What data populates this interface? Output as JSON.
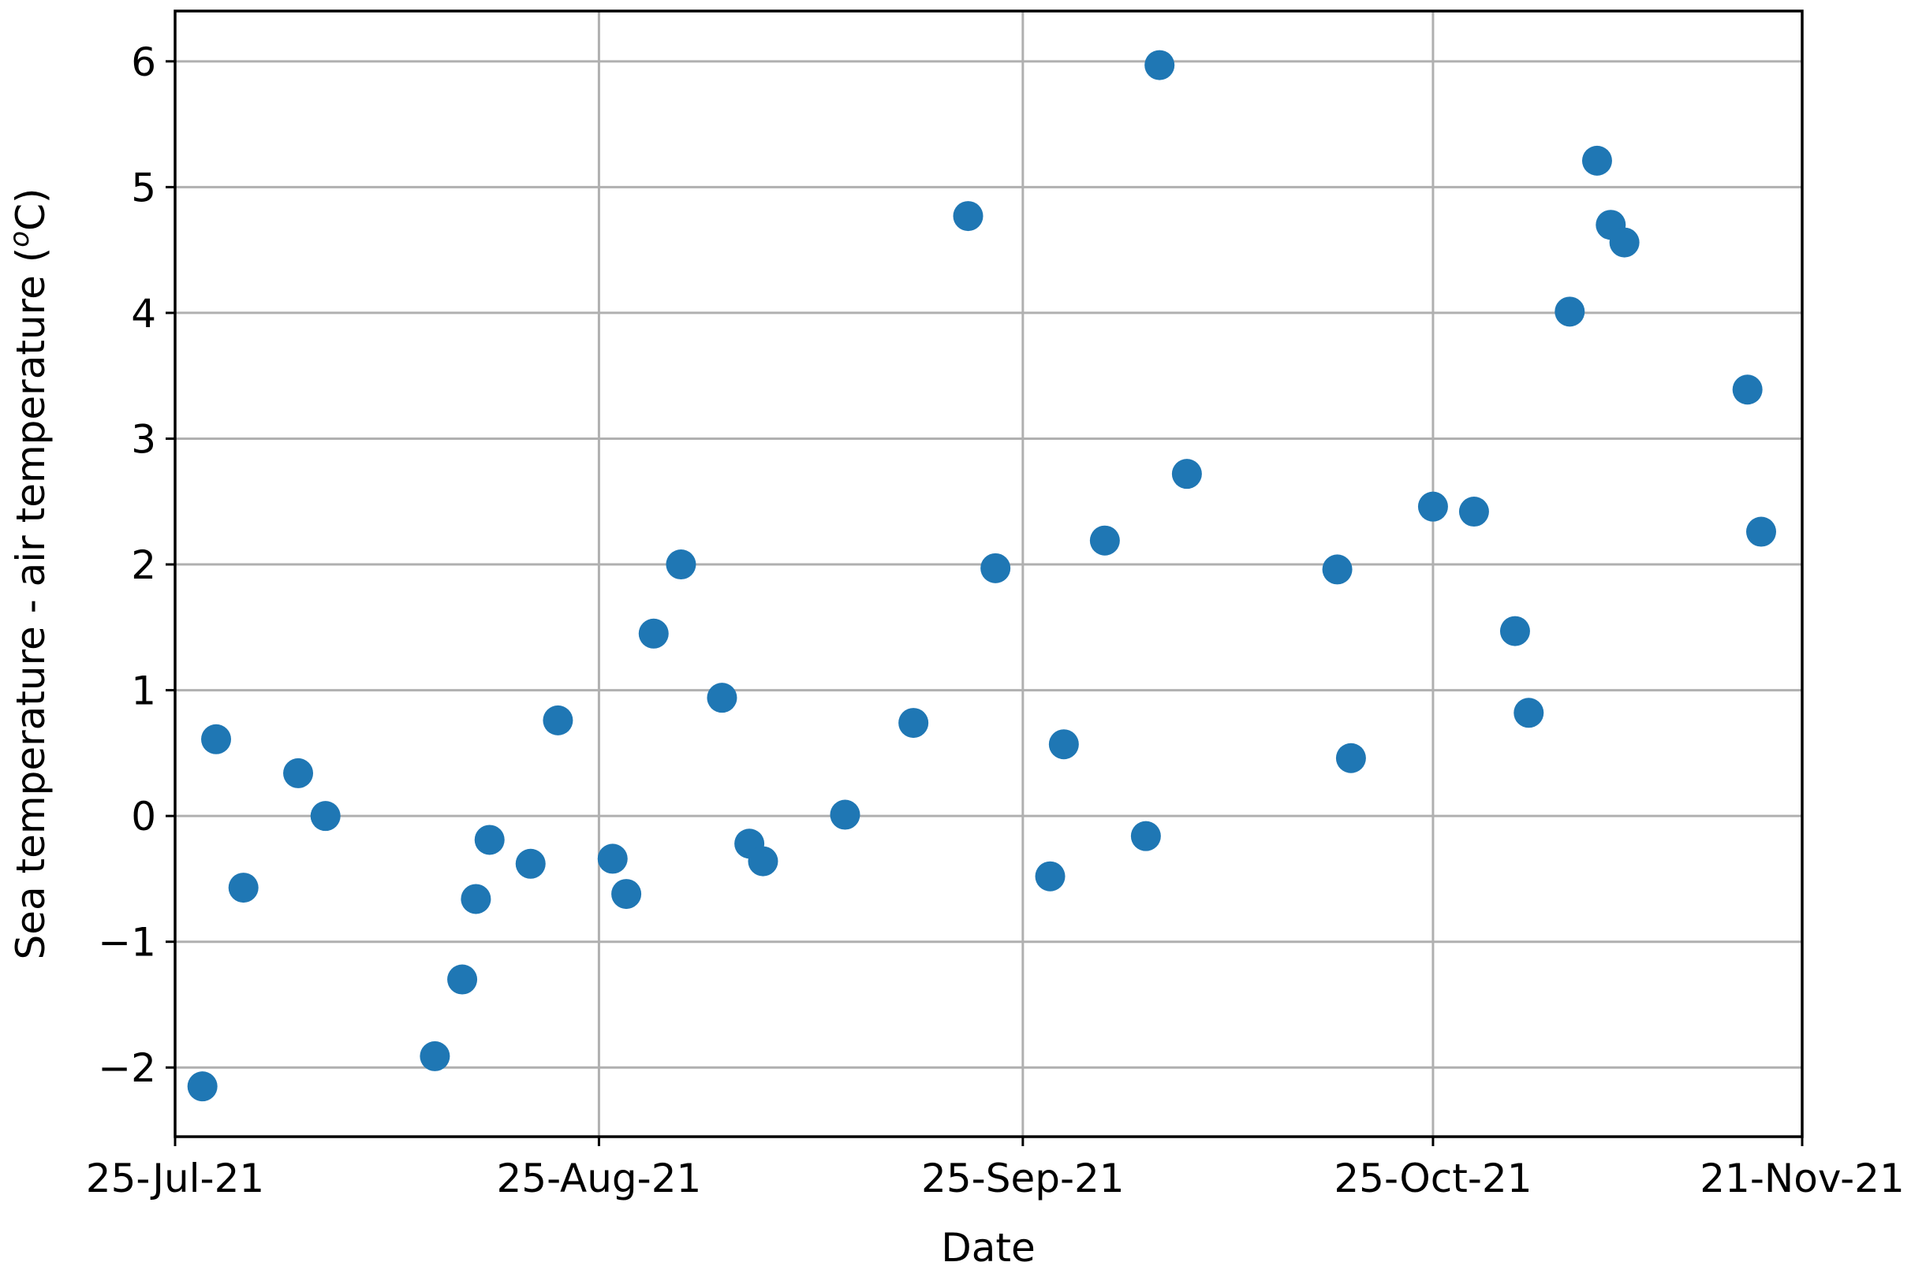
{
  "chart_data": {
    "type": "scatter",
    "xlabel": "Date",
    "ylabel_parts": [
      "Sea temperature - air temperature (",
      "o",
      "C)"
    ],
    "xlim": [
      "2021-07-25",
      "2021-11-21"
    ],
    "ylim": [
      -2.55,
      6.4
    ],
    "x_ticks": [
      {
        "date": "2021-07-25",
        "label": "25-Jul-21"
      },
      {
        "date": "2021-08-25",
        "label": "25-Aug-21"
      },
      {
        "date": "2021-09-25",
        "label": "25-Sep-21"
      },
      {
        "date": "2021-10-25",
        "label": "25-Oct-21"
      },
      {
        "date": "2021-11-21",
        "label": "21-Nov-21"
      }
    ],
    "y_ticks": [
      {
        "value": -2,
        "label": "−2"
      },
      {
        "value": -1,
        "label": "−1"
      },
      {
        "value": 0,
        "label": "0"
      },
      {
        "value": 1,
        "label": "1"
      },
      {
        "value": 2,
        "label": "2"
      },
      {
        "value": 3,
        "label": "3"
      },
      {
        "value": 4,
        "label": "4"
      },
      {
        "value": 5,
        "label": "5"
      },
      {
        "value": 6,
        "label": "6"
      }
    ],
    "grid": true,
    "marker_color": "#1f77b4",
    "series": [
      {
        "points": [
          {
            "x": "2021-07-27",
            "y": -2.15
          },
          {
            "x": "2021-07-28",
            "y": 0.61
          },
          {
            "x": "2021-07-30",
            "y": -0.57
          },
          {
            "x": "2021-08-03",
            "y": 0.34
          },
          {
            "x": "2021-08-05",
            "y": 0.0
          },
          {
            "x": "2021-08-13",
            "y": -1.91
          },
          {
            "x": "2021-08-15",
            "y": -1.3
          },
          {
            "x": "2021-08-16",
            "y": -0.66
          },
          {
            "x": "2021-08-17",
            "y": -0.19
          },
          {
            "x": "2021-08-20",
            "y": -0.38
          },
          {
            "x": "2021-08-22",
            "y": 0.76
          },
          {
            "x": "2021-08-26",
            "y": -0.34
          },
          {
            "x": "2021-08-27",
            "y": -0.62
          },
          {
            "x": "2021-08-29",
            "y": 1.45
          },
          {
            "x": "2021-08-31",
            "y": 2.0
          },
          {
            "x": "2021-09-03",
            "y": 0.94
          },
          {
            "x": "2021-09-05",
            "y": -0.22
          },
          {
            "x": "2021-09-06",
            "y": -0.36
          },
          {
            "x": "2021-09-12",
            "y": 0.01
          },
          {
            "x": "2021-09-17",
            "y": 0.74
          },
          {
            "x": "2021-09-21",
            "y": 4.77
          },
          {
            "x": "2021-09-23",
            "y": 1.97
          },
          {
            "x": "2021-09-27",
            "y": -0.48
          },
          {
            "x": "2021-09-28",
            "y": 0.57
          },
          {
            "x": "2021-10-01",
            "y": 2.19
          },
          {
            "x": "2021-10-04",
            "y": -0.16
          },
          {
            "x": "2021-10-05",
            "y": 5.97
          },
          {
            "x": "2021-10-07",
            "y": 2.72
          },
          {
            "x": "2021-10-18",
            "y": 1.96
          },
          {
            "x": "2021-10-19",
            "y": 0.46
          },
          {
            "x": "2021-10-25",
            "y": 2.46
          },
          {
            "x": "2021-10-28",
            "y": 2.42
          },
          {
            "x": "2021-10-31",
            "y": 1.47
          },
          {
            "x": "2021-11-01",
            "y": 0.82
          },
          {
            "x": "2021-11-04",
            "y": 4.01
          },
          {
            "x": "2021-11-06",
            "y": 5.21
          },
          {
            "x": "2021-11-07",
            "y": 4.7
          },
          {
            "x": "2021-11-08",
            "y": 4.56
          },
          {
            "x": "2021-11-17",
            "y": 3.39
          },
          {
            "x": "2021-11-18",
            "y": 2.26
          }
        ]
      }
    ]
  }
}
